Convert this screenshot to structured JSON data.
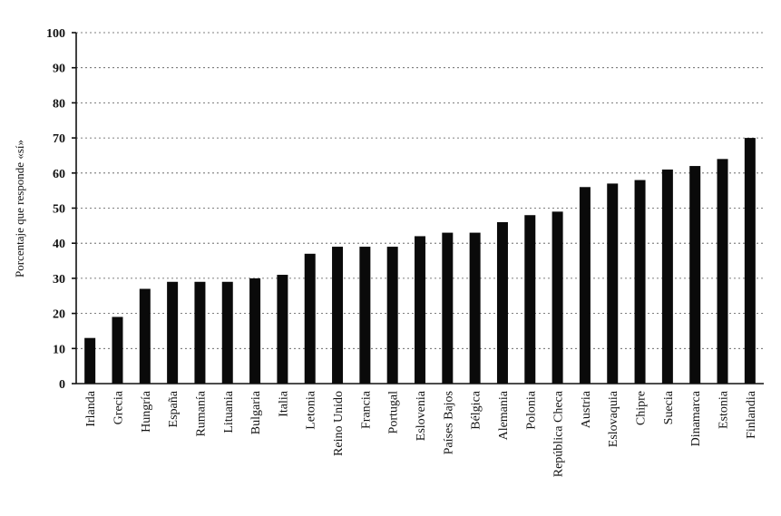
{
  "chart_data": {
    "type": "bar",
    "ylabel": "Porcentaje que responde «sí»",
    "xlabel": "",
    "ylim": [
      0,
      100
    ],
    "yticks": [
      0,
      10,
      20,
      30,
      40,
      50,
      60,
      70,
      80,
      90,
      100
    ],
    "grid": true,
    "categories": [
      "Irlanda",
      "Grecia",
      "Hungría",
      "España",
      "Rumanía",
      "Lituania",
      "Bulgaria",
      "Italia",
      "Letonia",
      "Reino Unido",
      "Francia",
      "Portugal",
      "Eslovenia",
      "Países Bajos",
      "Bélgica",
      "Alemania",
      "Polonia",
      "República Checa",
      "Austria",
      "Eslovaquia",
      "Chipre",
      "Suecia",
      "Dinamarca",
      "Estonia",
      "Finlandia"
    ],
    "values": [
      13,
      19,
      27,
      29,
      29,
      29,
      30,
      31,
      37,
      39,
      39,
      39,
      42,
      43,
      43,
      46,
      48,
      49,
      56,
      57,
      58,
      61,
      62,
      64,
      70
    ],
    "colors": {
      "bar": "#0a0a0a",
      "axis": "#111111",
      "grid": "#555555"
    }
  }
}
